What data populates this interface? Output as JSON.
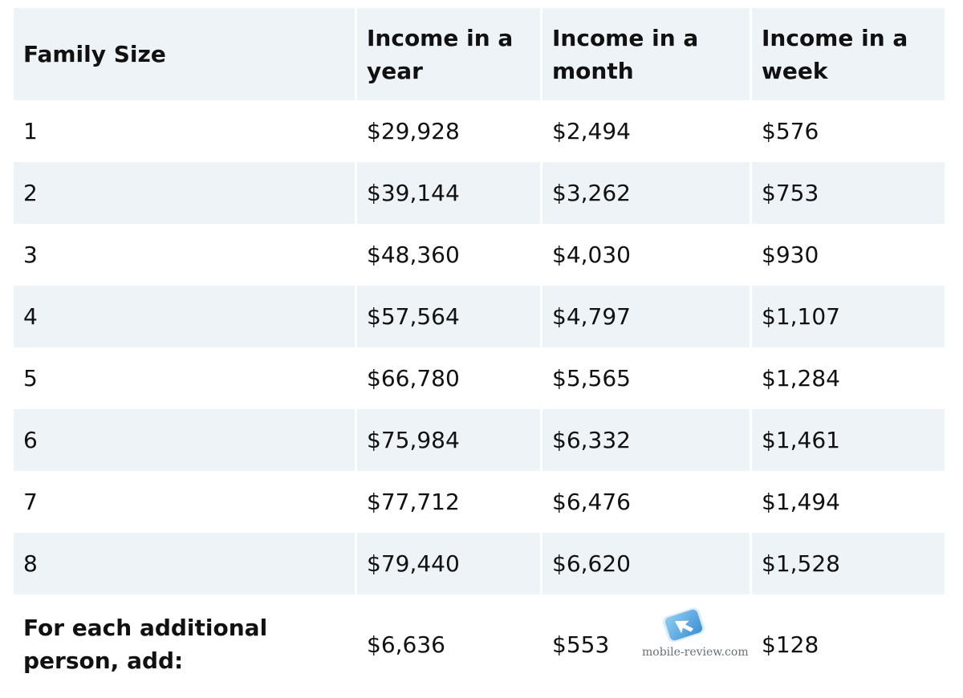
{
  "headers": [
    "Family Size",
    "Income in a year",
    "Income in a month",
    "Income in a week"
  ],
  "rows": [
    [
      "1",
      "$29,928",
      "$2,494",
      "$576"
    ],
    [
      "2",
      "$39,144",
      "$3,262",
      "$753"
    ],
    [
      "3",
      "$48,360",
      "$4,030",
      "$930"
    ],
    [
      "4",
      "$57,564",
      "$4,797",
      "$1,107"
    ],
    [
      "5",
      "$66,780",
      "$5,565",
      "$1,284"
    ],
    [
      "6",
      "$75,984",
      "$6,332",
      "$1,461"
    ],
    [
      "7",
      "$77,712",
      "$6,476",
      "$1,494"
    ],
    [
      "8",
      "$79,440",
      "$6,620",
      "$1,528"
    ]
  ],
  "footer": {
    "label": "For each additional person, add:",
    "year": "$6,636",
    "month": "$553",
    "week": "$128"
  },
  "watermark": {
    "text": "mobile-review.com",
    "icon": "mobile-review-logo-icon"
  },
  "colors": {
    "stripe": "#eef3f7",
    "text": "#111111",
    "watermark_blue": "#4aa3df"
  }
}
